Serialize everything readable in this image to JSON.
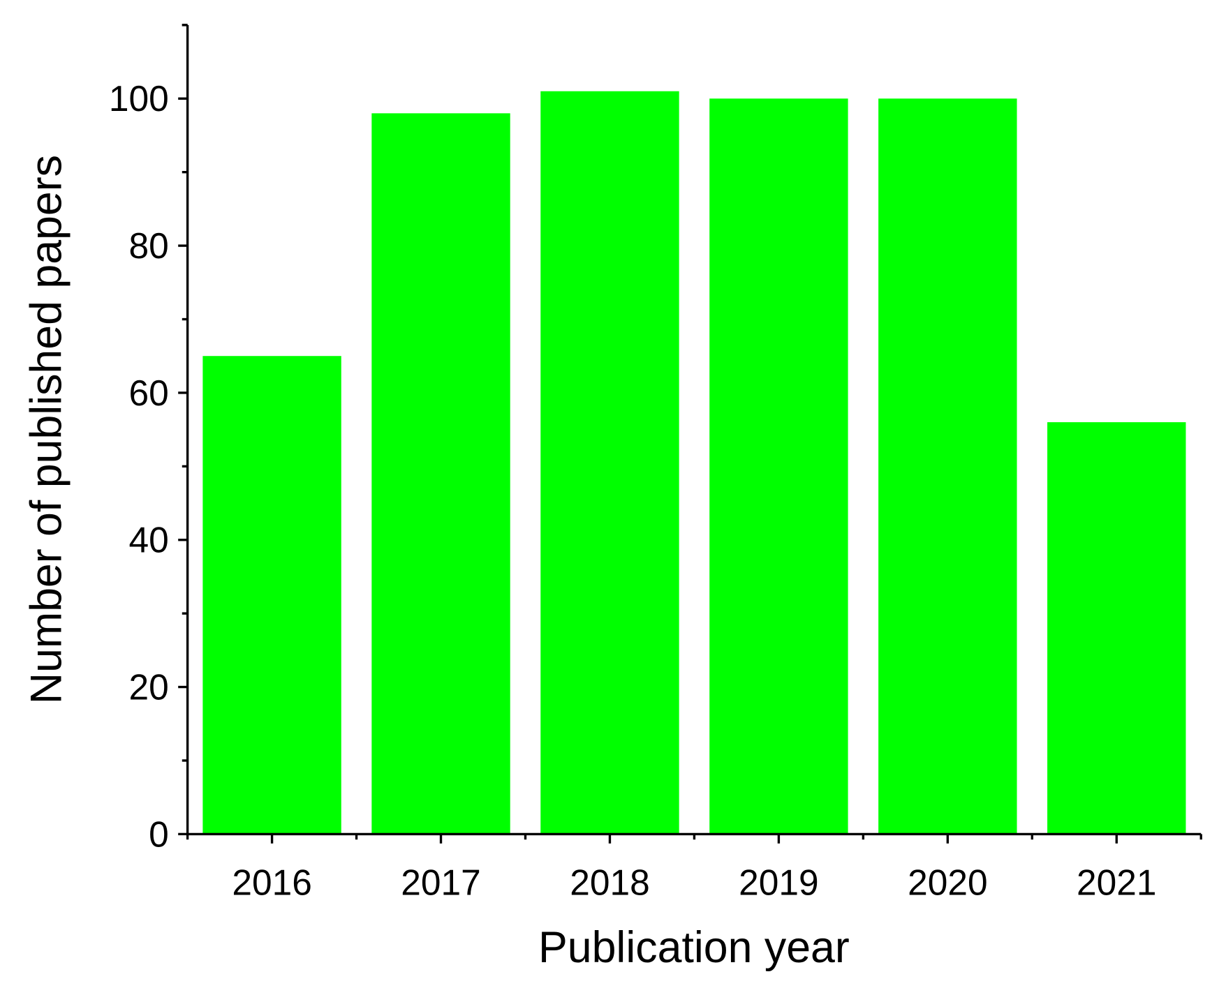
{
  "chart_data": {
    "type": "bar",
    "x_label": "Publication year",
    "y_label": "Number of published papers",
    "categories": [
      "2016",
      "2017",
      "2018",
      "2019",
      "2020",
      "2021"
    ],
    "values": [
      65,
      98,
      101,
      100,
      100,
      56
    ],
    "color": "#00ff00",
    "ylim": [
      0,
      110
    ],
    "yticks": [
      0,
      20,
      40,
      60,
      80,
      100
    ],
    "grid": false
  }
}
